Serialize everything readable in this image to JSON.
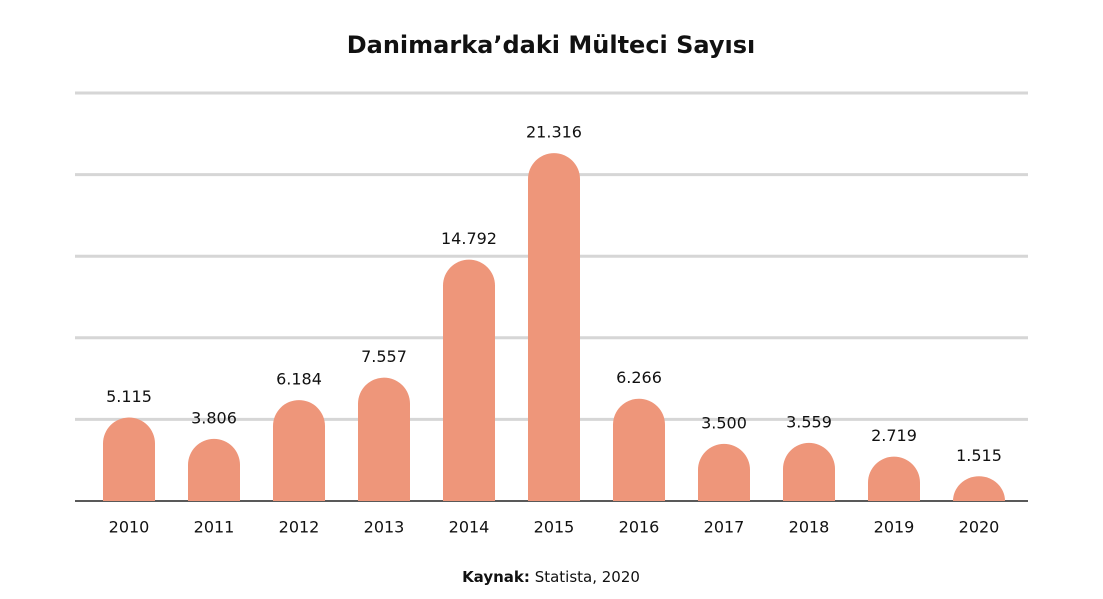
{
  "chart_data": {
    "type": "bar",
    "title": "Danimarka’daki Mülteci Sayısı",
    "categories": [
      "2010",
      "2011",
      "2012",
      "2013",
      "2014",
      "2015",
      "2016",
      "2017",
      "2018",
      "2019",
      "2020"
    ],
    "values": [
      5115,
      3806,
      6184,
      7557,
      14792,
      21316,
      6266,
      3500,
      3559,
      2719,
      1515
    ],
    "value_labels": [
      "5.115",
      "3.806",
      "6.184",
      "7.557",
      "14.792",
      "21.316",
      "6.266",
      "3.500",
      "3.559",
      "2.719",
      "1.515"
    ],
    "color": "#ee967a",
    "ylim": [
      0,
      25000
    ],
    "yticks": [
      0,
      5000,
      10000,
      15000,
      20000,
      25000
    ],
    "grid": true,
    "source": {
      "label": "Kaynak:",
      "text": "Statista, 2020"
    }
  }
}
